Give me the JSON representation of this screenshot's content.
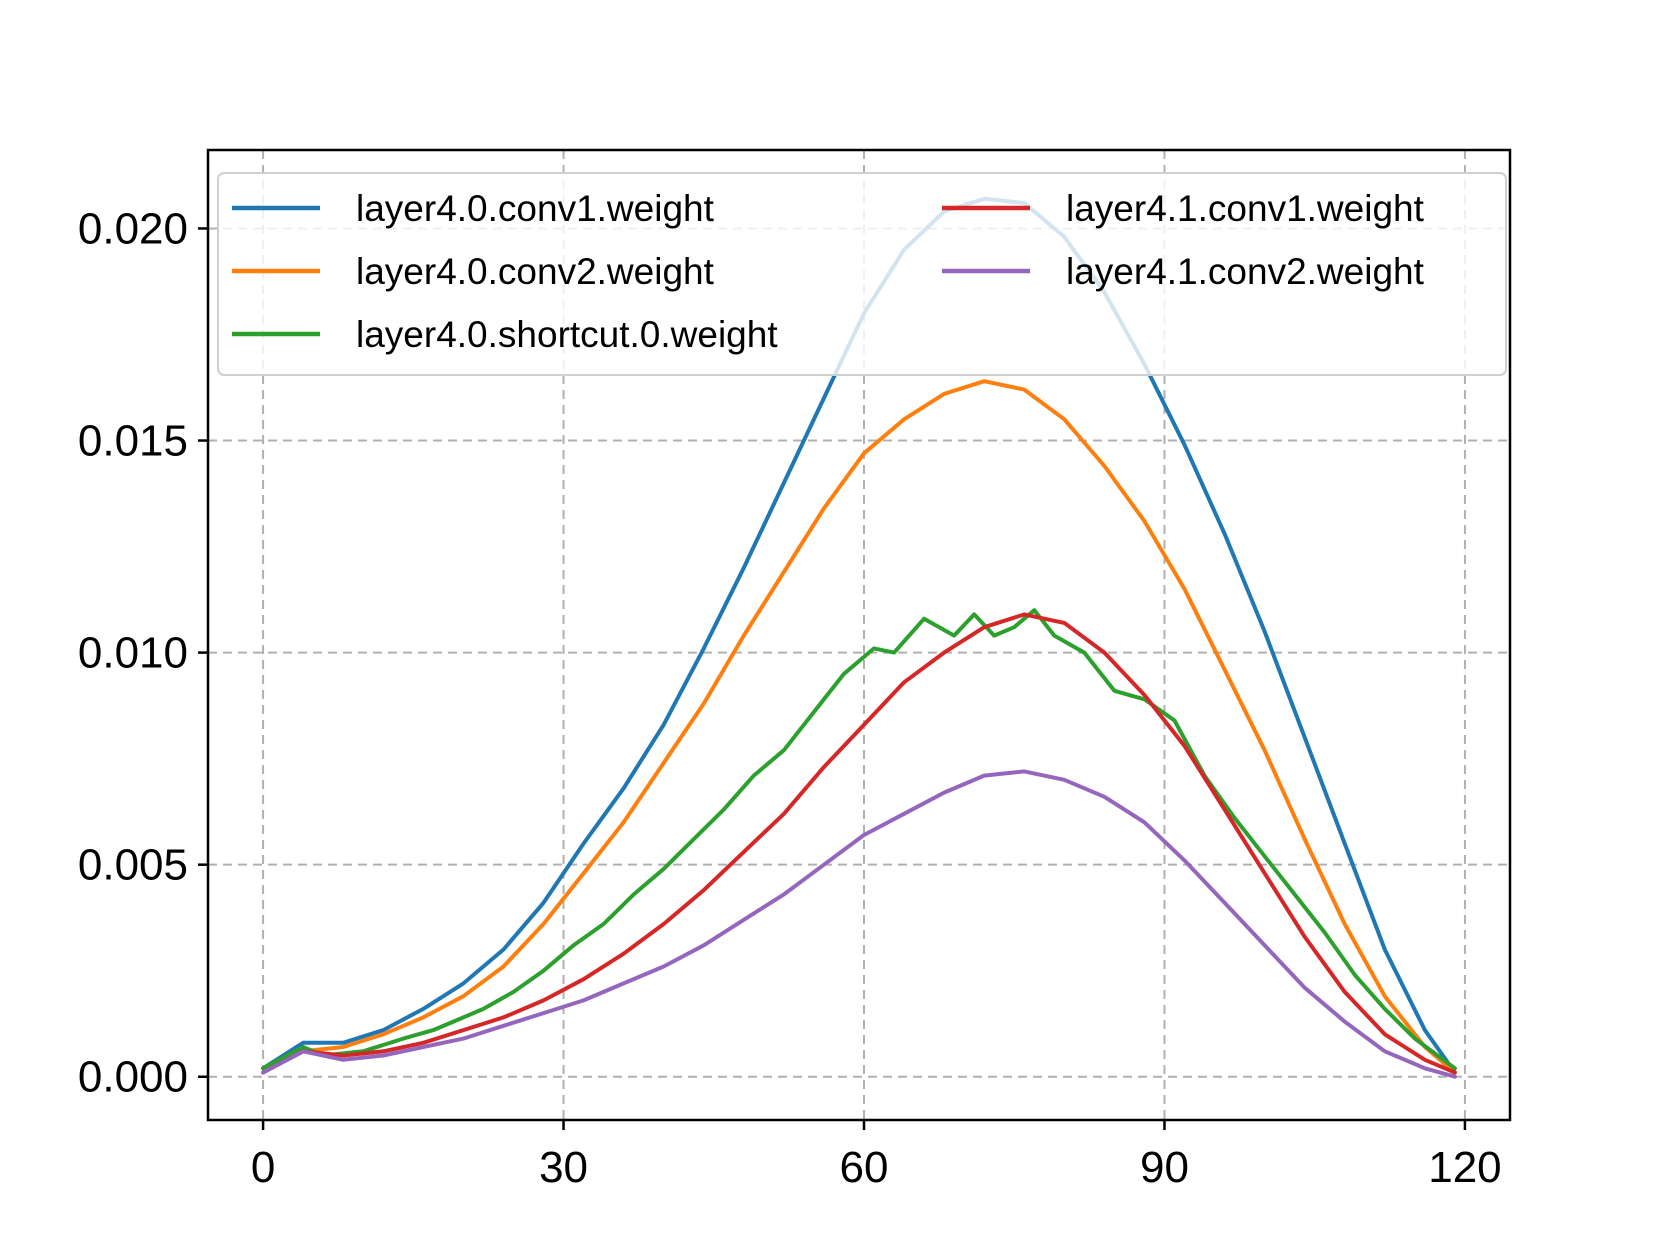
{
  "chart_data": {
    "type": "line",
    "title": "",
    "xlabel": "",
    "ylabel": "",
    "xlim": [
      -5.5,
      124.5
    ],
    "ylim": [
      -0.00102,
      0.02185
    ],
    "xticks": [
      0,
      30,
      60,
      90,
      120
    ],
    "xtick_labels": [
      "0",
      "30",
      "60",
      "90",
      "120"
    ],
    "yticks": [
      0.0,
      0.005,
      0.01,
      0.015,
      0.02
    ],
    "ytick_labels": [
      "0.000",
      "0.005",
      "0.010",
      "0.015",
      "0.020"
    ],
    "grid": true,
    "legend": {
      "position": "top",
      "columns": 2
    },
    "series": [
      {
        "name": "layer4.0.conv1.weight",
        "color": "#1f77b4",
        "x": [
          0,
          4,
          8,
          12,
          16,
          20,
          24,
          28,
          32,
          36,
          40,
          44,
          48,
          52,
          56,
          60,
          64,
          68,
          72,
          76,
          80,
          84,
          88,
          92,
          96,
          100,
          104,
          108,
          112,
          116,
          119
        ],
        "y": [
          0.0002,
          0.0008,
          0.0008,
          0.0011,
          0.0016,
          0.0022,
          0.003,
          0.0041,
          0.0055,
          0.0068,
          0.0083,
          0.0101,
          0.012,
          0.014,
          0.016,
          0.018,
          0.0195,
          0.0204,
          0.0207,
          0.0206,
          0.0198,
          0.0185,
          0.0168,
          0.0149,
          0.0128,
          0.0105,
          0.008,
          0.0055,
          0.003,
          0.0011,
          0.0001
        ]
      },
      {
        "name": "layer4.0.conv2.weight",
        "color": "#ff7f0e",
        "x": [
          0,
          4,
          8,
          12,
          16,
          20,
          24,
          28,
          32,
          36,
          40,
          44,
          48,
          52,
          56,
          60,
          64,
          68,
          72,
          76,
          80,
          84,
          88,
          92,
          96,
          100,
          104,
          108,
          112,
          116,
          119
        ],
        "y": [
          0.0002,
          0.0006,
          0.0007,
          0.001,
          0.0014,
          0.0019,
          0.0026,
          0.0036,
          0.0048,
          0.006,
          0.0074,
          0.0088,
          0.0104,
          0.0119,
          0.0134,
          0.0147,
          0.0155,
          0.0161,
          0.0164,
          0.0162,
          0.0155,
          0.0144,
          0.0131,
          0.0115,
          0.0096,
          0.0077,
          0.0056,
          0.0036,
          0.0019,
          0.0007,
          0.0001
        ]
      },
      {
        "name": "layer4.0.shortcut.0.weight",
        "color": "#2ca02c",
        "x": [
          0,
          4,
          6,
          10,
          14,
          17,
          19,
          22,
          25,
          28,
          31,
          34,
          37,
          40,
          43,
          46,
          49,
          52,
          55,
          58,
          61,
          63,
          66,
          69,
          71,
          73,
          75,
          77,
          79,
          82,
          85,
          88,
          91,
          94,
          97,
          100,
          103,
          106,
          109,
          112,
          115,
          119
        ],
        "y": [
          0.0002,
          0.0007,
          0.0005,
          0.0006,
          0.0009,
          0.0011,
          0.0013,
          0.0016,
          0.002,
          0.0025,
          0.0031,
          0.0036,
          0.0043,
          0.0049,
          0.0056,
          0.0063,
          0.0071,
          0.0077,
          0.0086,
          0.0095,
          0.0101,
          0.01,
          0.0108,
          0.0104,
          0.0109,
          0.0104,
          0.0106,
          0.011,
          0.0104,
          0.01,
          0.0091,
          0.0089,
          0.0084,
          0.0071,
          0.0061,
          0.0052,
          0.0043,
          0.0034,
          0.0024,
          0.0016,
          0.0009,
          0.0002
        ]
      },
      {
        "name": "layer4.1.conv1.weight",
        "color": "#d62728",
        "x": [
          0,
          4,
          8,
          12,
          16,
          20,
          24,
          28,
          32,
          36,
          40,
          44,
          48,
          52,
          56,
          60,
          64,
          68,
          72,
          76,
          80,
          84,
          88,
          92,
          96,
          100,
          104,
          108,
          112,
          116,
          119
        ],
        "y": [
          0.0001,
          0.0006,
          0.0005,
          0.0006,
          0.0008,
          0.0011,
          0.0014,
          0.0018,
          0.0023,
          0.0029,
          0.0036,
          0.0044,
          0.0053,
          0.0062,
          0.0073,
          0.0083,
          0.0093,
          0.01,
          0.0106,
          0.0109,
          0.0107,
          0.01,
          0.009,
          0.0078,
          0.0063,
          0.0048,
          0.0033,
          0.002,
          0.001,
          0.0004,
          0.0001
        ]
      },
      {
        "name": "layer4.1.conv2.weight",
        "color": "#9467bd",
        "x": [
          0,
          4,
          8,
          12,
          16,
          20,
          24,
          28,
          32,
          36,
          40,
          44,
          48,
          52,
          56,
          60,
          64,
          68,
          72,
          76,
          80,
          84,
          88,
          92,
          96,
          100,
          104,
          108,
          112,
          116,
          119
        ],
        "y": [
          0.0001,
          0.0006,
          0.0004,
          0.0005,
          0.0007,
          0.0009,
          0.0012,
          0.0015,
          0.0018,
          0.0022,
          0.0026,
          0.0031,
          0.0037,
          0.0043,
          0.005,
          0.0057,
          0.0062,
          0.0067,
          0.0071,
          0.0072,
          0.007,
          0.0066,
          0.006,
          0.0051,
          0.0041,
          0.0031,
          0.0021,
          0.0013,
          0.0006,
          0.0002,
          0.0
        ]
      }
    ]
  }
}
